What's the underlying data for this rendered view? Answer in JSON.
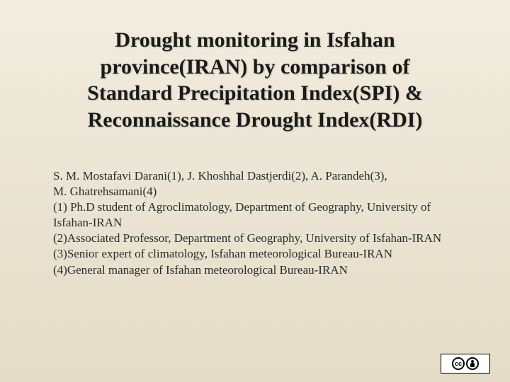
{
  "title": {
    "line1": "Drought monitoring in Isfahan",
    "line2": "province(IRAN) by comparison of",
    "line3": "Standard Precipitation Index(SPI) &",
    "line4": "Reconnaissance Drought Index(RDI)"
  },
  "authors": {
    "line1": "S. M. Mostafavi Darani(1), J. Khoshhal Dastjerdi(2), A. Parandeh(3),",
    "line2": "M. Ghatrehsamani(4)",
    "affil1": "(1) Ph.D student of Agroclimatology, Department of Geography, University of Isfahan-IRAN",
    "affil2": "(2)Associated Professor, Department of Geography, University of Isfahan-IRAN",
    "affil3": "(3)Senior expert of climatology, Isfahan meteorological Bureau-IRAN",
    "affil4": "(4)General manager of Isfahan meteorological Bureau-IRAN"
  },
  "license": {
    "cc": "cc",
    "by": "BY"
  },
  "style": {
    "title_fontsize": 30,
    "title_color": "#1a1a1a",
    "body_fontsize": 17,
    "body_color": "#2a2a2a",
    "bg_top": "#f2ede0",
    "bg_bottom": "#e4dcc6"
  }
}
